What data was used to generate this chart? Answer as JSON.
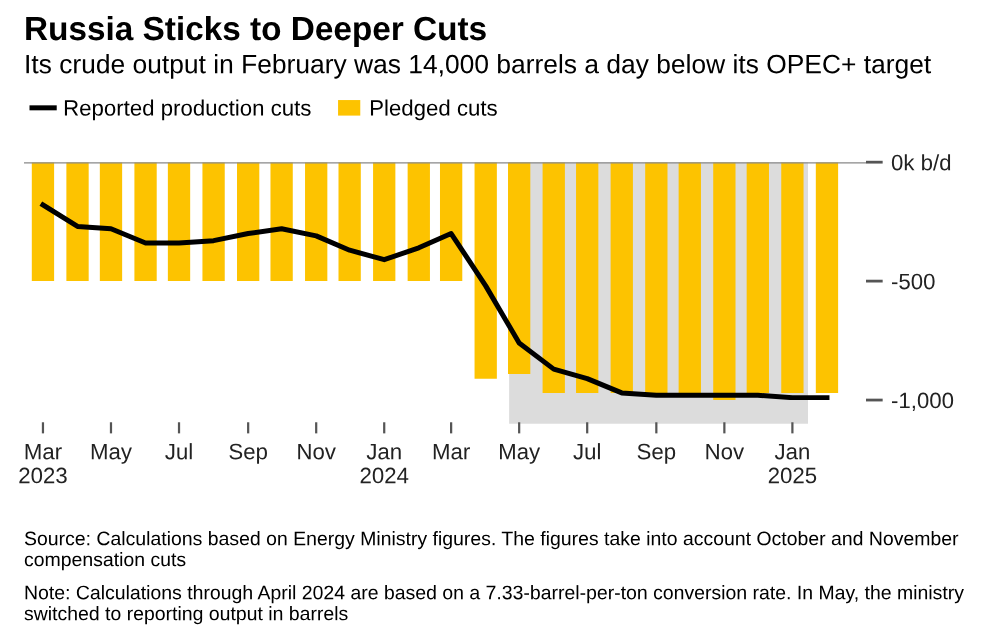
{
  "chart_data": {
    "type": "bar",
    "title": "Russia Sticks to Deeper Cuts",
    "subtitle": "Its crude output in February was 14,000 barrels a day below its OPEC+ target",
    "x": [
      "2023-03",
      "2023-04",
      "2023-05",
      "2023-06",
      "2023-07",
      "2023-08",
      "2023-09",
      "2023-10",
      "2023-11",
      "2023-12",
      "2024-01",
      "2024-02",
      "2024-03",
      "2024-04",
      "2024-05",
      "2024-06",
      "2024-07",
      "2024-08",
      "2024-09",
      "2024-10",
      "2024-11",
      "2024-12",
      "2025-01",
      "2025-02"
    ],
    "series": [
      {
        "name": "Pledged cuts",
        "color": "#fdc300",
        "values": [
          -500,
          -500,
          -500,
          -500,
          -500,
          -500,
          -500,
          -500,
          -500,
          -500,
          -500,
          -500,
          -500,
          -910,
          -890,
          -970,
          -970,
          -970,
          -970,
          -970,
          -1000,
          -970,
          -970,
          -970
        ]
      },
      {
        "name": "Reported production cuts",
        "type": "line",
        "color": "#000000",
        "values": [
          -180,
          -270,
          -280,
          -340,
          -340,
          -330,
          -300,
          -280,
          -310,
          -370,
          -410,
          -360,
          -300,
          -520,
          -760,
          -870,
          -910,
          -970,
          -980,
          -980,
          -980,
          -980,
          -990,
          -990
        ]
      }
    ],
    "bands": [
      {
        "axis": "x",
        "from": "2024-04-22",
        "to": "2025-01-15",
        "color": "#dcdcdc"
      }
    ],
    "xlim": [
      "2023-02-12",
      "2025-03-08"
    ],
    "xticks": [
      {
        "value": "2023-03",
        "label": "Mar\n2023"
      },
      {
        "value": "2023-05",
        "label": "May"
      },
      {
        "value": "2023-07",
        "label": "Jul"
      },
      {
        "value": "2023-09",
        "label": "Sep"
      },
      {
        "value": "2023-11",
        "label": "Nov"
      },
      {
        "value": "2024-01",
        "label": "Jan\n2024"
      },
      {
        "value": "2024-03",
        "label": "Mar"
      },
      {
        "value": "2024-05",
        "label": "May"
      },
      {
        "value": "2024-07",
        "label": "Jul"
      },
      {
        "value": "2024-09",
        "label": "Sep"
      },
      {
        "value": "2024-11",
        "label": "Nov"
      },
      {
        "value": "2025-01",
        "label": "Jan\n2025"
      }
    ],
    "ylim": [
      -1000,
      0
    ],
    "ref_lines": [
      {
        "axis": "y",
        "value": 0,
        "color": "#888888"
      }
    ],
    "yticks": [
      {
        "value": 0,
        "label": "0k b/d"
      },
      {
        "value": -500,
        "label": "-500"
      },
      {
        "value": -1000,
        "label": "-1,000"
      }
    ],
    "legend": "top left",
    "grid": false,
    "annotations": [
      "Source: Calculations based on Energy Ministry figures. The figures take into account October and November compensation cuts",
      "Note: Calculations through April 2024 are based on a 7.33-barrel-per-ton conversion rate. In May, the ministry switched to reporting output in barrels"
    ]
  }
}
